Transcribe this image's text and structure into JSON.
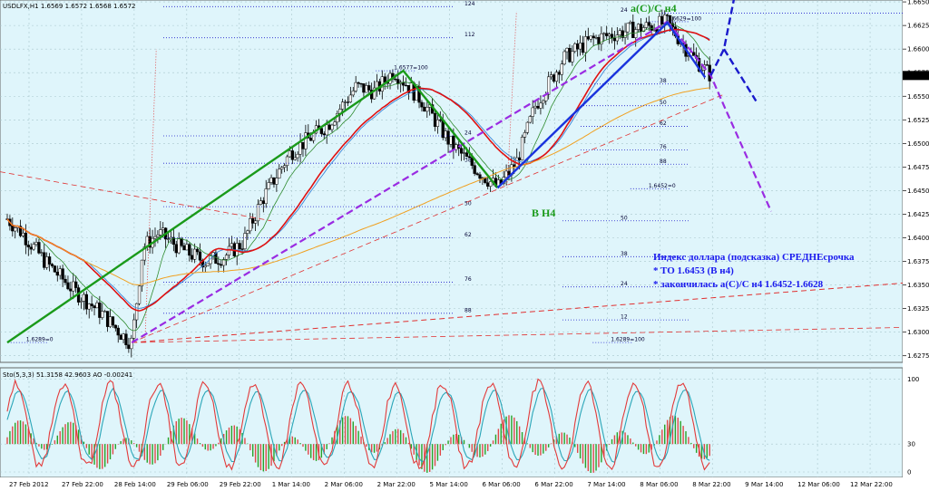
{
  "header": {
    "main": "USDLFX,H1  1.6569 1.6572 1.6568 1.6572",
    "osc": "Sto(5,3,3) 51.3158 42.9603  AO -0.00241"
  },
  "colors": {
    "background": "#dff5fb",
    "grid": "#a9c6cc",
    "candle": "#000000",
    "ma_red": "#e01010",
    "ma_orange": "#f0a020",
    "ma_blue": "#3a86d8",
    "ma_green": "#2e8b2e",
    "wave_green": "#1a9a1a",
    "wave_blue": "#1a33dd",
    "projection_blue": "#1a1acc",
    "channel_purple": "#9a2be2",
    "trend_red": "#e03030",
    "fib_blue": "#2020cc",
    "sto_main": "#e23a3a",
    "sto_signal": "#2aa6b8",
    "ao_up": "#27a327",
    "ao_down": "#e04848"
  },
  "chart_data": [
    {
      "type": "line",
      "subtype": "candlestick price chart",
      "symbol": "USDLFX",
      "timeframe": "H1",
      "last_price": "1.6572",
      "y_ticks": [
        "1.6650",
        "1.6625",
        "1.6600",
        "1.6575",
        "1.6550",
        "1.6525",
        "1.6500",
        "1.6475",
        "1.6450",
        "1.6425",
        "1.6400",
        "1.6375",
        "1.6350",
        "1.6325",
        "1.6300",
        "1.6275"
      ],
      "ylim": [
        1.6268,
        1.6652
      ],
      "x_ticks": [
        "27 Feb 2012",
        "27 Feb 22:00",
        "28 Feb 14:00",
        "29 Feb 06:00",
        "29 Feb 22:00",
        "1 Mar 14:00",
        "2 Mar 06:00",
        "2 Mar 22:00",
        "5 Mar 14:00",
        "6 Mar 06:00",
        "6 Mar 22:00",
        "7 Mar 14:00",
        "8 Mar 06:00",
        "8 Mar 22:00",
        "9 Mar 14:00",
        "12 Mar 06:00",
        "12 Mar 22:00"
      ],
      "grid": true,
      "waves": {
        "green": [
          [
            0.0,
            1.6289
          ],
          [
            21.0,
            1.6577
          ],
          [
            26.0,
            1.6453
          ]
        ],
        "blue": [
          [
            26.0,
            1.6453
          ],
          [
            35.0,
            1.6628
          ],
          [
            37.0,
            1.657
          ]
        ]
      },
      "pivots": [
        {
          "label": "1.6289=0",
          "x": 1.0,
          "price": 1.6289
        },
        {
          "label": "1.6577=100",
          "x": 20.5,
          "price": 1.6577
        },
        {
          "label": "1.6629=100",
          "x": 35.0,
          "price": 1.6629
        },
        {
          "label": "1.6452=0",
          "x": 34.0,
          "price": 1.6452
        },
        {
          "label": "1.6289=100",
          "x": 32.0,
          "price": 1.6289
        }
      ],
      "fib_levels": [
        {
          "label": "124",
          "price": 1.6645
        },
        {
          "label": "112",
          "price": 1.6612
        },
        {
          "label": "24",
          "price": 1.6508
        },
        {
          "label": "38",
          "price": 1.6479
        },
        {
          "label": "50",
          "price": 1.6433
        },
        {
          "label": "62",
          "price": 1.64
        },
        {
          "label": "76",
          "price": 1.6353
        },
        {
          "label": "88",
          "price": 1.632
        },
        {
          "label": "38",
          "price": 1.6563
        },
        {
          "label": "50",
          "price": 1.654
        },
        {
          "label": "62",
          "price": 1.6518
        },
        {
          "label": "76",
          "price": 1.6493
        },
        {
          "label": "88",
          "price": 1.6478
        },
        {
          "label": "50",
          "price": 1.6418
        },
        {
          "label": "38",
          "price": 1.638
        },
        {
          "label": "24",
          "price": 1.6348
        },
        {
          "label": "12",
          "price": 1.6313
        },
        {
          "label": "24",
          "price": 1.6638
        }
      ],
      "labels": {
        "wave_a": "a(C)/C н4",
        "wave_b": "B H4"
      },
      "annotation_lines": [
        "Индекс доллара (подсказка) СРЕДНЕсрочка",
        "* TO 1.6453 (B н4)",
        "* закончилась a(C)/C н4 1.6452-1.6628"
      ]
    },
    {
      "type": "line",
      "subtype": "oscillator",
      "name": "Sto(5,3,3) / AO",
      "y_ticks": [
        "100",
        "30",
        "0"
      ],
      "ylim": [
        0,
        110
      ]
    }
  ]
}
